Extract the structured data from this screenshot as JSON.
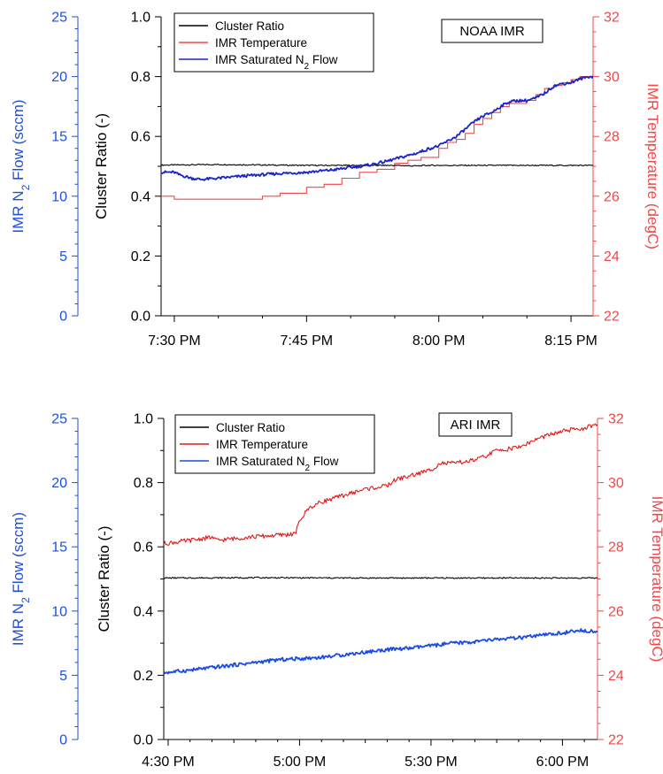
{
  "colors": {
    "flow_axis": "#1f4fd6",
    "temp_axis": "#f04848",
    "ratio_line": "#000000",
    "noaa_temp_line": "#f04848",
    "noaa_flow_line": "#1a22c8",
    "ari_temp_line": "#e01818",
    "ari_flow_line": "#1a4ae8"
  },
  "chart_data": [
    {
      "type": "line",
      "tag": "NOAA IMR",
      "xlabel": "",
      "x_ticks": [
        "7:30 PM",
        "7:45 PM",
        "8:00 PM",
        "8:15 PM"
      ],
      "x_tick_minutes": [
        0,
        15,
        30,
        45
      ],
      "x_range_minutes": [
        -1.5,
        47.5
      ],
      "y_left": {
        "label": "Cluster Ratio (-)",
        "lim": [
          0,
          1
        ],
        "ticks": [
          "0.0",
          "0.2",
          "0.4",
          "0.6",
          "0.8",
          "1.0"
        ]
      },
      "y_flow": {
        "label_pre": "IMR N",
        "label_sub": "2",
        "label_post": " Flow (sccm)",
        "lim": [
          0,
          25
        ],
        "ticks": [
          "0",
          "5",
          "10",
          "15",
          "20",
          "25"
        ]
      },
      "y_temp": {
        "label": "IMR Temperature (degC)",
        "lim": [
          22,
          32
        ],
        "ticks": [
          "22",
          "24",
          "26",
          "28",
          "30",
          "32"
        ]
      },
      "legend": [
        {
          "label": "Cluster Ratio",
          "sub": "",
          "post": "",
          "color_key": "ratio_line"
        },
        {
          "label": "IMR Temperature",
          "sub": "",
          "post": "",
          "color_key": "noaa_temp_line"
        },
        {
          "label": "IMR Saturated N",
          "sub": "2",
          "post": " Flow",
          "color_key": "noaa_flow_line"
        }
      ],
      "series": [
        {
          "name": "Cluster Ratio",
          "axis": "left",
          "style": "line",
          "points": [
            [
              -1.5,
              0.504
            ],
            [
              5,
              0.506
            ],
            [
              15,
              0.503
            ],
            [
              25,
              0.503
            ],
            [
              27.5,
              0.501
            ],
            [
              28.5,
              0.503
            ],
            [
              35,
              0.503
            ],
            [
              45,
              0.503
            ],
            [
              47.5,
              0.503
            ]
          ]
        },
        {
          "name": "IMR Temperature",
          "axis": "temp",
          "style": "step",
          "points": [
            [
              -1.5,
              26.0
            ],
            [
              0,
              25.9
            ],
            [
              3,
              25.9
            ],
            [
              5,
              25.9
            ],
            [
              10,
              26.0
            ],
            [
              12,
              26.1
            ],
            [
              15,
              26.3
            ],
            [
              17,
              26.4
            ],
            [
              19,
              26.6
            ],
            [
              21,
              26.8
            ],
            [
              23,
              26.9
            ],
            [
              25,
              27.1
            ],
            [
              26.5,
              27.2
            ],
            [
              28,
              27.3
            ],
            [
              30,
              27.6
            ],
            [
              31,
              27.8
            ],
            [
              32,
              27.9
            ],
            [
              33,
              28.1
            ],
            [
              34,
              28.4
            ],
            [
              35,
              28.6
            ],
            [
              36,
              28.8
            ],
            [
              37,
              29.0
            ],
            [
              38,
              29.1
            ],
            [
              40,
              29.2
            ],
            [
              41,
              29.4
            ],
            [
              42,
              29.6
            ],
            [
              43,
              29.7
            ],
            [
              44,
              29.8
            ],
            [
              45,
              29.9
            ],
            [
              46,
              30.0
            ],
            [
              47.5,
              30.0
            ]
          ]
        },
        {
          "name": "IMR Saturated N2 Flow",
          "axis": "flow",
          "style": "line",
          "points": [
            [
              -1.5,
              12.0
            ],
            [
              0,
              12.0
            ],
            [
              0.5,
              11.8
            ],
            [
              1,
              11.7
            ],
            [
              2,
              11.5
            ],
            [
              3,
              11.4
            ],
            [
              5,
              11.5
            ],
            [
              8,
              11.7
            ],
            [
              10,
              11.8
            ],
            [
              12,
              11.9
            ],
            [
              15,
              12.0
            ],
            [
              18,
              12.2
            ],
            [
              20,
              12.4
            ],
            [
              22,
              12.6
            ],
            [
              24,
              12.9
            ],
            [
              26,
              13.3
            ],
            [
              27.5,
              13.6
            ],
            [
              29,
              14.0
            ],
            [
              30,
              14.2
            ],
            [
              31,
              14.6
            ],
            [
              32,
              15.0
            ],
            [
              33,
              15.6
            ],
            [
              34,
              16.2
            ],
            [
              35,
              16.7
            ],
            [
              36,
              17.0
            ],
            [
              37,
              17.5
            ],
            [
              38,
              17.9
            ],
            [
              39,
              18.0
            ],
            [
              40,
              18.0
            ],
            [
              41,
              18.2
            ],
            [
              42,
              18.6
            ],
            [
              43,
              19.2
            ],
            [
              44,
              19.4
            ],
            [
              45,
              19.5
            ],
            [
              46,
              19.8
            ],
            [
              47,
              20.0
            ],
            [
              47.5,
              20.0
            ]
          ]
        }
      ]
    },
    {
      "type": "line",
      "tag": "ARI IMR",
      "xlabel": "",
      "x_ticks": [
        "4:30 PM",
        "5:00 PM",
        "5:30 PM",
        "6:00 PM"
      ],
      "x_tick_minutes": [
        0,
        30,
        60,
        90
      ],
      "x_minor_minutes": [
        15,
        45,
        75
      ],
      "x_range_minutes": [
        -1,
        98
      ],
      "y_left": {
        "label": "Cluster Ratio (-)",
        "lim": [
          0,
          1
        ],
        "ticks": [
          "0.0",
          "0.2",
          "0.4",
          "0.6",
          "0.8",
          "1.0"
        ]
      },
      "y_flow": {
        "label_pre": "IMR N",
        "label_sub": "2",
        "label_post": " Flow (sccm)",
        "lim": [
          0,
          25
        ],
        "ticks": [
          "0",
          "5",
          "10",
          "15",
          "20",
          "25"
        ]
      },
      "y_temp": {
        "label": "IMR Temperature (degC)",
        "lim": [
          22,
          32
        ],
        "ticks": [
          "22",
          "24",
          "26",
          "28",
          "30",
          "32"
        ]
      },
      "legend": [
        {
          "label": "Cluster Ratio",
          "sub": "",
          "post": "",
          "color_key": "ratio_line"
        },
        {
          "label": "IMR Temperature",
          "sub": "",
          "post": "",
          "color_key": "ari_temp_line"
        },
        {
          "label": "IMR Saturated N",
          "sub": "2",
          "post": " Flow",
          "color_key": "ari_flow_line"
        }
      ],
      "series": [
        {
          "name": "Cluster Ratio",
          "axis": "left",
          "style": "line",
          "points": [
            [
              -1,
              0.503
            ],
            [
              20,
              0.504
            ],
            [
              40,
              0.503
            ],
            [
              60,
              0.503
            ],
            [
              80,
              0.503
            ],
            [
              98,
              0.503
            ]
          ]
        },
        {
          "name": "IMR Temperature",
          "axis": "temp",
          "style": "line",
          "points": [
            [
              -1,
              28.1
            ],
            [
              5,
              28.2
            ],
            [
              10,
              28.3
            ],
            [
              11,
              28.2
            ],
            [
              18,
              28.3
            ],
            [
              29,
              28.4
            ],
            [
              30,
              28.8
            ],
            [
              32,
              29.2
            ],
            [
              35,
              29.4
            ],
            [
              40,
              29.6
            ],
            [
              45,
              29.8
            ],
            [
              50,
              29.9
            ],
            [
              52,
              30.1
            ],
            [
              55,
              30.2
            ],
            [
              60,
              30.4
            ],
            [
              62,
              30.6
            ],
            [
              65,
              30.6
            ],
            [
              70,
              30.7
            ],
            [
              72,
              30.8
            ],
            [
              75,
              31.0
            ],
            [
              80,
              31.1
            ],
            [
              85,
              31.4
            ],
            [
              90,
              31.6
            ],
            [
              95,
              31.7
            ],
            [
              98,
              31.8
            ]
          ]
        },
        {
          "name": "IMR Saturated N2 Flow",
          "axis": "flow",
          "style": "line",
          "points": [
            [
              -1,
              5.2
            ],
            [
              5,
              5.4
            ],
            [
              10,
              5.6
            ],
            [
              15,
              5.8
            ],
            [
              20,
              6.0
            ],
            [
              25,
              6.2
            ],
            [
              30,
              6.3
            ],
            [
              35,
              6.4
            ],
            [
              40,
              6.6
            ],
            [
              45,
              6.8
            ],
            [
              50,
              7.0
            ],
            [
              55,
              7.1
            ],
            [
              60,
              7.3
            ],
            [
              65,
              7.5
            ],
            [
              70,
              7.6
            ],
            [
              75,
              7.8
            ],
            [
              80,
              7.9
            ],
            [
              85,
              8.1
            ],
            [
              90,
              8.3
            ],
            [
              95,
              8.5
            ],
            [
              98,
              8.4
            ]
          ]
        }
      ]
    }
  ]
}
